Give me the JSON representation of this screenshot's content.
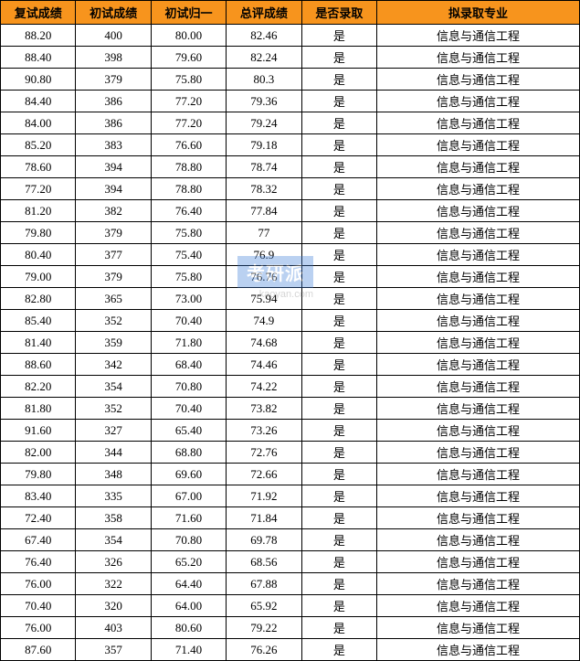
{
  "headers": [
    "复试成绩",
    "初试成绩",
    "初试归一",
    "总评成绩",
    "是否录取",
    "拟录取专业"
  ],
  "header_bg": "#f7941d",
  "border_color": "#000000",
  "rows": [
    [
      "88.20",
      "400",
      "80.00",
      "82.46",
      "是",
      "信息与通信工程"
    ],
    [
      "88.40",
      "398",
      "79.60",
      "82.24",
      "是",
      "信息与通信工程"
    ],
    [
      "90.80",
      "379",
      "75.80",
      "80.3",
      "是",
      "信息与通信工程"
    ],
    [
      "84.40",
      "386",
      "77.20",
      "79.36",
      "是",
      "信息与通信工程"
    ],
    [
      "84.00",
      "386",
      "77.20",
      "79.24",
      "是",
      "信息与通信工程"
    ],
    [
      "85.20",
      "383",
      "76.60",
      "79.18",
      "是",
      "信息与通信工程"
    ],
    [
      "78.60",
      "394",
      "78.80",
      "78.74",
      "是",
      "信息与通信工程"
    ],
    [
      "77.20",
      "394",
      "78.80",
      "78.32",
      "是",
      "信息与通信工程"
    ],
    [
      "81.20",
      "382",
      "76.40",
      "77.84",
      "是",
      "信息与通信工程"
    ],
    [
      "79.80",
      "379",
      "75.80",
      "77",
      "是",
      "信息与通信工程"
    ],
    [
      "80.40",
      "377",
      "75.40",
      "76.9",
      "是",
      "信息与通信工程"
    ],
    [
      "79.00",
      "379",
      "75.80",
      "76.76",
      "是",
      "信息与通信工程"
    ],
    [
      "82.80",
      "365",
      "73.00",
      "75.94",
      "是",
      "信息与通信工程"
    ],
    [
      "85.40",
      "352",
      "70.40",
      "74.9",
      "是",
      "信息与通信工程"
    ],
    [
      "81.40",
      "359",
      "71.80",
      "74.68",
      "是",
      "信息与通信工程"
    ],
    [
      "88.60",
      "342",
      "68.40",
      "74.46",
      "是",
      "信息与通信工程"
    ],
    [
      "82.20",
      "354",
      "70.80",
      "74.22",
      "是",
      "信息与通信工程"
    ],
    [
      "81.80",
      "352",
      "70.40",
      "73.82",
      "是",
      "信息与通信工程"
    ],
    [
      "91.60",
      "327",
      "65.40",
      "73.26",
      "是",
      "信息与通信工程"
    ],
    [
      "82.00",
      "344",
      "68.80",
      "72.76",
      "是",
      "信息与通信工程"
    ],
    [
      "79.80",
      "348",
      "69.60",
      "72.66",
      "是",
      "信息与通信工程"
    ],
    [
      "83.40",
      "335",
      "67.00",
      "71.92",
      "是",
      "信息与通信工程"
    ],
    [
      "72.40",
      "358",
      "71.60",
      "71.84",
      "是",
      "信息与通信工程"
    ],
    [
      "67.40",
      "354",
      "70.80",
      "69.78",
      "是",
      "信息与通信工程"
    ],
    [
      "76.40",
      "326",
      "65.20",
      "68.56",
      "是",
      "信息与通信工程"
    ],
    [
      "76.00",
      "322",
      "64.40",
      "67.88",
      "是",
      "信息与通信工程"
    ],
    [
      "70.40",
      "320",
      "64.00",
      "65.92",
      "是",
      "信息与通信工程"
    ],
    [
      "76.00",
      "403",
      "80.60",
      "79.22",
      "是",
      "信息与通信工程"
    ],
    [
      "87.60",
      "357",
      "71.40",
      "76.26",
      "是",
      "信息与通信工程"
    ]
  ],
  "watermark": {
    "main": "考研派",
    "sub": "kaoyan.com"
  }
}
